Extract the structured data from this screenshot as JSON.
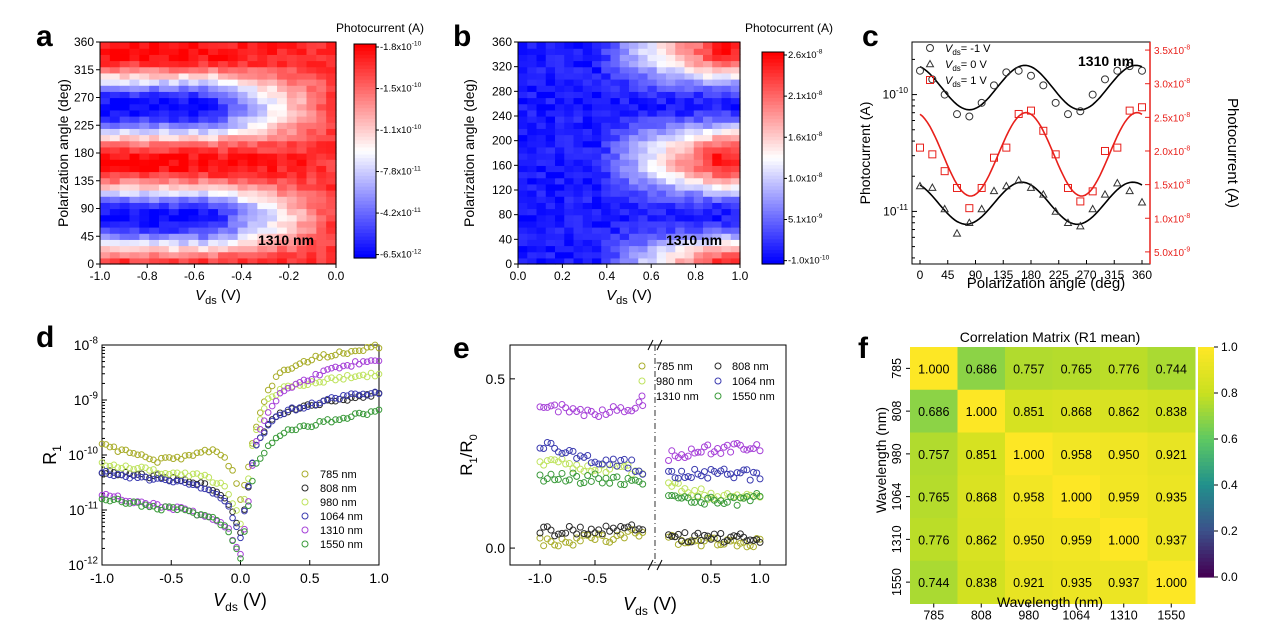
{
  "panels": [
    {
      "letter": "a",
      "type": "heatmap",
      "xlabel_main": "V",
      "xlabel_sub": "ds",
      "xlabel_unit": " (V)",
      "ylabel": "Polarization angle (deg)",
      "xlim": [
        -1.0,
        0.0
      ],
      "ylim": [
        0,
        360
      ],
      "xticks": [
        "-1.0",
        "-0.8",
        "-0.6",
        "-0.4",
        "-0.2",
        "0.0"
      ],
      "xtick_values": [
        -1.0,
        -0.8,
        -0.6,
        -0.4,
        -0.2,
        0.0
      ],
      "yticks": [
        "0",
        "45",
        "90",
        "135",
        "180",
        "225",
        "270",
        "315",
        "360"
      ],
      "ytick_values": [
        0,
        45,
        90,
        135,
        180,
        225,
        270,
        315,
        360
      ],
      "annotation": "1310 nm",
      "colorbar_title": "Photocurrent (A)",
      "colorbar_ticks": [
        "-1.8x10-10",
        "-1.5x10-10",
        "-1.1x10-10",
        "-7.8x10-11",
        "-4.2x10-11",
        "-6.5x10-12"
      ],
      "colormap": [
        "#ff0000",
        "#ffffff",
        "#0000ff"
      ]
    },
    {
      "letter": "b",
      "type": "heatmap",
      "xlabel_main": "V",
      "xlabel_sub": "ds",
      "xlabel_unit": " (V)",
      "ylabel": "Polarization angle (deg)",
      "xlim": [
        0.0,
        1.0
      ],
      "ylim": [
        0,
        360
      ],
      "xticks": [
        "0.0",
        "0.2",
        "0.4",
        "0.6",
        "0.8",
        "1.0"
      ],
      "xtick_values": [
        0.0,
        0.2,
        0.4,
        0.6,
        0.8,
        1.0
      ],
      "yticks": [
        "0",
        "40",
        "80",
        "120",
        "160",
        "200",
        "240",
        "280",
        "320",
        "360"
      ],
      "ytick_values": [
        0,
        40,
        80,
        120,
        160,
        200,
        240,
        280,
        320,
        360
      ],
      "annotation": "1310 nm",
      "colorbar_title": "Photocurrent (A)",
      "colorbar_ticks": [
        "2.6x10-8",
        "2.1x10-8",
        "1.6x10-8",
        "1.0x10-8",
        "5.1x10-9",
        "-1.0x10-10"
      ],
      "colormap": [
        "#ff0000",
        "#ffffff",
        "#0000ff"
      ]
    }
  ],
  "panel_c": {
    "letter": "c",
    "xlabel": "Polarization angle (deg)",
    "ylabel_left": "Photocurrent (A)",
    "ylabel_right": "Photocurrent (A)",
    "annotation": "1310 nm",
    "xticks": [
      "0",
      "45",
      "90",
      "135",
      "180",
      "225",
      "270",
      "315",
      "360"
    ],
    "xtick_values": [
      0,
      45,
      90,
      135,
      180,
      225,
      270,
      315,
      360
    ],
    "left_ticks": [
      {
        "base": "10",
        "exp": "-10",
        "value": 1e-10
      },
      {
        "base": "10",
        "exp": "-11",
        "value": 1e-11
      }
    ],
    "right_ticks": [
      {
        "label": "3.5x10",
        "exp": "-8",
        "value": 3.5e-08
      },
      {
        "label": "3.0x10",
        "exp": "-8",
        "value": 3e-08
      },
      {
        "label": "2.5x10",
        "exp": "-8",
        "value": 2.5e-08
      },
      {
        "label": "2.0x10",
        "exp": "-8",
        "value": 2e-08
      },
      {
        "label": "1.5x10",
        "exp": "-8",
        "value": 1.5e-08
      },
      {
        "label": "1.0x10",
        "exp": "-8",
        "value": 1e-08
      },
      {
        "label": "5.0x10",
        "exp": "-9",
        "value": 5e-09
      }
    ],
    "left_color": "#000000",
    "right_color": "#e8201b",
    "legend": [
      {
        "marker": "circle",
        "pre": "V",
        "sub": "ds",
        "post": "= -1 V"
      },
      {
        "marker": "triangle",
        "pre": "V",
        "sub": "ds",
        "post": "= 0 V"
      },
      {
        "marker": "square",
        "pre": "V",
        "sub": "ds",
        "post": "= 1 V"
      }
    ],
    "series": [
      {
        "axis": "left",
        "marker": "circle",
        "x": [
          0,
          20,
          40,
          60,
          80,
          100,
          120,
          140,
          160,
          180,
          200,
          220,
          240,
          260,
          280,
          300,
          320,
          340,
          360
        ],
        "y": [
          1.6e-10,
          1.35e-10,
          1e-10,
          6.8e-11,
          6.5e-11,
          8.5e-11,
          1.2e-10,
          1.55e-10,
          1.6e-10,
          1.45e-10,
          1.2e-10,
          8.5e-11,
          6.8e-11,
          7.2e-11,
          1e-10,
          1.35e-10,
          1.6e-10,
          1.75e-10,
          1.6e-10
        ]
      },
      {
        "axis": "left",
        "marker": "triangle",
        "x": [
          0,
          20,
          40,
          60,
          80,
          100,
          120,
          140,
          160,
          180,
          200,
          220,
          240,
          260,
          280,
          300,
          320,
          340,
          360
        ],
        "y": [
          1.65e-11,
          1.6e-11,
          1.05e-11,
          6.5e-12,
          8e-12,
          1.05e-11,
          1.5e-11,
          1.65e-11,
          1.85e-11,
          1.6e-11,
          1.4e-11,
          1e-11,
          8e-12,
          7.5e-12,
          1.05e-11,
          1.4e-11,
          1.75e-11,
          1.5e-11,
          1.2e-11
        ]
      },
      {
        "axis": "right",
        "marker": "square",
        "x": [
          0,
          20,
          40,
          60,
          80,
          100,
          120,
          140,
          160,
          180,
          200,
          220,
          240,
          260,
          280,
          300,
          320,
          340,
          360
        ],
        "y": [
          2.05e-08,
          1.95e-08,
          1.7e-08,
          1.45e-08,
          1.15e-08,
          1.45e-08,
          1.9e-08,
          2.05e-08,
          2.55e-08,
          2.6e-08,
          2.3e-08,
          1.95e-08,
          1.45e-08,
          1.25e-08,
          1.4e-08,
          2e-08,
          2.05e-08,
          2.6e-08,
          2.65e-08
        ]
      }
    ]
  },
  "panel_d": {
    "letter": "d",
    "xlabel_main": "V",
    "xlabel_sub": "ds",
    "xlabel_unit": " (V)",
    "ylabel_main": "R",
    "ylabel_sub": "1",
    "xticks": [
      "-1.0",
      "-0.5",
      "0.0",
      "0.5",
      "1.0"
    ],
    "xtick_values": [
      -1.0,
      -0.5,
      0.0,
      0.5,
      1.0
    ],
    "yticks": [
      {
        "base": "10",
        "exp": "-8",
        "value": 1e-08
      },
      {
        "base": "10",
        "exp": "-9",
        "value": 1e-09
      },
      {
        "base": "10",
        "exp": "-10",
        "value": 1e-10
      },
      {
        "base": "10",
        "exp": "-11",
        "value": 1e-11
      },
      {
        "base": "10",
        "exp": "-12",
        "value": 1e-12
      }
    ],
    "series": [
      {
        "name": "785 nm",
        "color": "#a9ad2b",
        "x": [
          -1.0,
          -0.8,
          -0.6,
          -0.4,
          -0.25,
          -0.15,
          -0.05,
          0.0,
          0.05,
          0.1,
          0.2,
          0.3,
          0.5,
          0.7,
          1.0
        ],
        "y": [
          1.5e-10,
          1.1e-10,
          8e-11,
          9e-11,
          1.2e-10,
          1.1e-10,
          5e-11,
          1.5e-11,
          5e-11,
          2.5e-10,
          1.5e-09,
          3.5e-09,
          5.5e-09,
          7e-09,
          9.5e-09
        ]
      },
      {
        "name": "808 nm",
        "color": "#2a2a2a",
        "x": [
          -1.0,
          -0.8,
          -0.6,
          -0.4,
          -0.25,
          -0.1,
          0.0,
          0.05,
          0.1,
          0.2,
          0.3,
          0.5,
          0.7,
          1.0
        ],
        "y": [
          5e-11,
          4.5e-11,
          4e-11,
          3.5e-11,
          2.8e-11,
          1.5e-11,
          4e-12,
          2e-11,
          1.3e-10,
          3.5e-10,
          6e-10,
          8e-10,
          1e-09,
          1.3e-09
        ]
      },
      {
        "name": "980 nm",
        "color": "#bfe35e",
        "x": [
          -1.0,
          -0.8,
          -0.6,
          -0.4,
          -0.25,
          -0.1,
          0.0,
          0.05,
          0.1,
          0.2,
          0.3,
          0.5,
          0.7,
          1.0
        ],
        "y": [
          7e-11,
          6e-11,
          5e-11,
          4.5e-11,
          4e-11,
          2.5e-11,
          6e-12,
          3e-11,
          2.5e-10,
          1e-09,
          1.6e-09,
          2e-09,
          2.5e-09,
          3e-09
        ]
      },
      {
        "name": "1064 nm",
        "color": "#3b3bb0",
        "x": [
          -1.0,
          -0.8,
          -0.6,
          -0.4,
          -0.25,
          -0.1,
          0.0,
          0.05,
          0.1,
          0.2,
          0.3,
          0.5,
          0.7,
          1.0
        ],
        "y": [
          5e-11,
          4e-11,
          3.5e-11,
          3e-11,
          2.5e-11,
          1.5e-11,
          3e-12,
          2e-11,
          1.3e-10,
          3.5e-10,
          6e-10,
          8e-10,
          1.1e-09,
          1.4e-09
        ]
      },
      {
        "name": "1310 nm",
        "color": "#a641d8",
        "x": [
          -1.0,
          -0.8,
          -0.6,
          -0.4,
          -0.25,
          -0.1,
          0.0,
          0.05,
          0.1,
          0.2,
          0.3,
          0.5,
          0.7,
          1.0
        ],
        "y": [
          2e-11,
          1.5e-11,
          1.2e-11,
          1e-11,
          8e-12,
          5e-12,
          1.5e-12,
          1e-11,
          1.5e-10,
          6e-10,
          1.5e-09,
          2.5e-09,
          4e-09,
          5.5e-09
        ]
      },
      {
        "name": "1550 nm",
        "color": "#3a9a3a",
        "x": [
          -1.0,
          -0.8,
          -0.6,
          -0.4,
          -0.25,
          -0.1,
          0.0,
          0.05,
          0.1,
          0.2,
          0.3,
          0.5,
          0.7,
          1.0
        ],
        "y": [
          1.6e-11,
          1.4e-11,
          1.1e-11,
          1e-11,
          8e-12,
          5e-12,
          1.2e-12,
          1e-11,
          6e-11,
          1.5e-10,
          2.5e-10,
          3.5e-10,
          4.5e-10,
          6.5e-10
        ]
      }
    ]
  },
  "panel_e": {
    "letter": "e",
    "xlabel_main": "V",
    "xlabel_sub": "ds",
    "xlabel_unit": " (V)",
    "ylabel_a": "R",
    "ylabel_a_sub": "1",
    "ylabel_b": "/R",
    "ylabel_b_sub": "0",
    "ylim": [
      -0.05,
      0.6
    ],
    "yticks": [
      "0.0",
      "0.5"
    ],
    "ytick_values": [
      0.0,
      0.5
    ],
    "xticks": [
      "-1.0",
      "-0.5",
      "0.5",
      "1.0"
    ],
    "xtick_values": [
      -1.0,
      -0.5,
      0.5,
      1.0
    ],
    "series": [
      {
        "name": "785 nm",
        "color": "#a9ad2b",
        "x": [
          -1.0,
          -0.8,
          -0.6,
          -0.4,
          -0.2,
          -0.05,
          0.05,
          0.2,
          0.4,
          0.6,
          0.8,
          1.0
        ],
        "y": [
          0.02,
          0.02,
          0.025,
          0.03,
          0.04,
          0.045,
          0.03,
          0.02,
          0.02,
          0.02,
          0.02,
          0.015
        ]
      },
      {
        "name": "808 nm",
        "color": "#2a2a2a",
        "x": [
          -1.0,
          -0.8,
          -0.6,
          -0.4,
          -0.2,
          -0.05,
          0.05,
          0.2,
          0.4,
          0.6,
          0.8,
          1.0
        ],
        "y": [
          0.05,
          0.05,
          0.055,
          0.055,
          0.06,
          0.06,
          0.045,
          0.035,
          0.03,
          0.03,
          0.03,
          0.03
        ]
      },
      {
        "name": "980 nm",
        "color": "#bfe35e",
        "x": [
          -1.0,
          -0.8,
          -0.6,
          -0.4,
          -0.2,
          -0.05,
          0.05,
          0.2,
          0.4,
          0.6,
          0.8,
          1.0
        ],
        "y": [
          0.26,
          0.25,
          0.24,
          0.235,
          0.23,
          0.22,
          0.2,
          0.17,
          0.16,
          0.15,
          0.15,
          0.15
        ]
      },
      {
        "name": "1064 nm",
        "color": "#3b3bb0",
        "x": [
          -1.0,
          -0.8,
          -0.6,
          -0.4,
          -0.2,
          -0.05,
          0.05,
          0.2,
          0.4,
          0.6,
          0.8,
          1.0
        ],
        "y": [
          0.31,
          0.29,
          0.27,
          0.26,
          0.25,
          0.23,
          0.22,
          0.215,
          0.22,
          0.22,
          0.22,
          0.21
        ]
      },
      {
        "name": "1310 nm",
        "color": "#a641d8",
        "x": [
          -1.0,
          -0.8,
          -0.6,
          -0.4,
          -0.2,
          -0.05,
          0.05,
          0.2,
          0.4,
          0.6,
          0.8,
          1.0
        ],
        "y": [
          0.43,
          0.41,
          0.4,
          0.4,
          0.41,
          0.42,
          0.27,
          0.28,
          0.29,
          0.29,
          0.3,
          0.3
        ]
      },
      {
        "name": "1550 nm",
        "color": "#3a9a3a",
        "x": [
          -1.0,
          -0.8,
          -0.6,
          -0.4,
          -0.2,
          -0.05,
          0.05,
          0.2,
          0.4,
          0.6,
          0.8,
          1.0
        ],
        "y": [
          0.21,
          0.21,
          0.205,
          0.205,
          0.2,
          0.2,
          0.15,
          0.16,
          0.14,
          0.14,
          0.14,
          0.16
        ]
      }
    ]
  },
  "panel_f": {
    "letter": "f",
    "title": "Correlation Matrix (R1 mean)",
    "xlabel": "Wavelength (nm)",
    "ylabel": "Wavelength (nm)",
    "labels": [
      "785",
      "808",
      "980",
      "1064",
      "1310",
      "1550"
    ],
    "matrix": [
      [
        1.0,
        0.686,
        0.757,
        0.765,
        0.776,
        0.744
      ],
      [
        0.686,
        1.0,
        0.851,
        0.868,
        0.862,
        0.838
      ],
      [
        0.757,
        0.851,
        1.0,
        0.958,
        0.95,
        0.921
      ],
      [
        0.765,
        0.868,
        0.958,
        1.0,
        0.959,
        0.935
      ],
      [
        0.776,
        0.862,
        0.95,
        0.959,
        1.0,
        0.937
      ],
      [
        0.744,
        0.838,
        0.921,
        0.935,
        0.937,
        1.0
      ]
    ],
    "colorbar_ticks": [
      "1.0",
      "0.8",
      "0.6",
      "0.4",
      "0.2",
      "0.0"
    ],
    "colorbar_values": [
      1.0,
      0.8,
      0.6,
      0.4,
      0.2,
      0.0
    ],
    "clim": [
      0.0,
      1.0
    ]
  },
  "chart_data": [
    {
      "type": "heatmap",
      "panel": "a",
      "xlabel": "Vds (V)",
      "ylabel": "Polarization angle (deg)",
      "xlim": [
        -1.0,
        0.0
      ],
      "ylim": [
        0,
        360
      ],
      "x_steps": 24,
      "y_steps": 36,
      "colorbar_range": [
        -1.8e-10,
        -6.5e-12
      ],
      "pattern": "cos(2*(theta-165deg)) modulation, amplitude decreasing toward Vds=0"
    },
    {
      "type": "heatmap",
      "panel": "b",
      "xlabel": "Vds (V)",
      "ylabel": "Polarization angle (deg)",
      "xlim": [
        0.0,
        1.0
      ],
      "ylim": [
        0,
        360
      ],
      "x_steps": 24,
      "y_steps": 36,
      "colorbar_range": [
        -1e-10,
        2.6e-08
      ],
      "pattern": "cos(2*(theta-170deg)) modulation, amplitude increasing toward Vds=1"
    },
    {
      "type": "scatter",
      "panel": "c",
      "xlabel": "Polarization angle (deg)",
      "ylabel": "Photocurrent (A)",
      "yscale_left": "log",
      "series": [
        {
          "name": "Vds= -1 V",
          "x": [
            0,
            45,
            90,
            135,
            180,
            225,
            270,
            315,
            360
          ],
          "y": [
            1.6e-10,
            1e-10,
            6.5e-11,
            1.5e-10,
            1.45e-10,
            8.5e-11,
            7.2e-11,
            1.35e-10,
            1.6e-10
          ]
        },
        {
          "name": "Vds= 0 V",
          "x": [
            0,
            45,
            90,
            135,
            180,
            225,
            270,
            315,
            360
          ],
          "y": [
            1.65e-11,
            1.05e-11,
            8e-12,
            1.6e-11,
            1.6e-11,
            1e-11,
            7.5e-12,
            1.6e-11,
            1.2e-11
          ]
        },
        {
          "name": "Vds= 1 V",
          "x": [
            0,
            45,
            90,
            135,
            180,
            225,
            270,
            315,
            360
          ],
          "y": [
            2.05e-08,
            1.7e-08,
            1.15e-08,
            2e-08,
            2.6e-08,
            1.9e-08,
            1.25e-08,
            2e-08,
            2.65e-08
          ]
        }
      ]
    },
    {
      "type": "scatter",
      "panel": "d",
      "xlabel": "Vds (V)",
      "ylabel": "R1",
      "yscale": "log",
      "ylim": [
        1e-12,
        1e-08
      ],
      "xlim": [
        -1.0,
        1.0
      ],
      "series_names": [
        "785 nm",
        "808 nm",
        "980 nm",
        "1064 nm",
        "1310 nm",
        "1550 nm"
      ]
    },
    {
      "type": "scatter",
      "panel": "e",
      "xlabel": "Vds (V)",
      "ylabel": "R1/R0",
      "ylim": [
        -0.05,
        0.6
      ],
      "series_names": [
        "785 nm",
        "808 nm",
        "980 nm",
        "1064 nm",
        "1310 nm",
        "1550 nm"
      ]
    },
    {
      "type": "heatmap",
      "panel": "f",
      "title": "Correlation Matrix (R1 mean)",
      "categories": [
        "785",
        "808",
        "980",
        "1064",
        "1310",
        "1550"
      ],
      "colormap": "viridis",
      "clim": [
        0.0,
        1.0
      ]
    }
  ]
}
